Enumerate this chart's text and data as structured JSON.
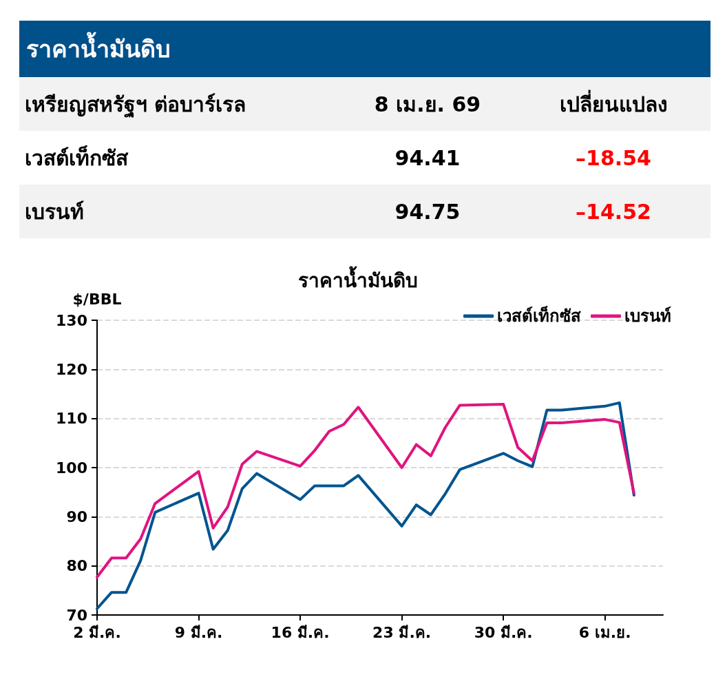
{
  "chart_data": [
    {
      "type": "other",
      "title": "ราคาน้ำมันดิบ",
      "subtitle": "เหรียญสหรัฐฯ ต่อบาร์เรล",
      "categories": [
        "เวสต์เท็กซัส",
        "เบรนท์"
      ],
      "data_labels": true,
      "series": [
        {
          "name": "8 เม.ย. 69",
          "values": [
            94.41,
            94.75
          ]
        },
        {
          "name": "เปลี่ยนแปลง",
          "values": [
            -18.54,
            -14.52
          ],
          "value_labels": [
            "–18.54",
            "–14.52"
          ]
        }
      ]
    },
    {
      "type": "line",
      "title": "ราคาน้ำมันดิบ",
      "ylabel": "$/BBL",
      "legend": "top right",
      "grid": "y",
      "line_style": "solid",
      "xlim": [
        "--03-02",
        "--04-10"
      ],
      "ylim": [
        70,
        130
      ],
      "yticks": [
        70,
        80,
        90,
        100,
        110,
        120,
        130
      ],
      "xticks": [
        {
          "value": "--03-02",
          "label": "2 มี.ค."
        },
        {
          "value": "--03-09",
          "label": "9 มี.ค."
        },
        {
          "value": "--03-16",
          "label": "16 มี.ค."
        },
        {
          "value": "--03-23",
          "label": "23 มี.ค."
        },
        {
          "value": "--03-30",
          "label": "30 มี.ค."
        },
        {
          "value": "--04-06",
          "label": "6 เม.ย."
        }
      ],
      "x": [
        "--03-02",
        "--03-03",
        "--03-04",
        "--03-05",
        "--03-06",
        "--03-09",
        "--03-10",
        "--03-11",
        "--03-12",
        "--03-13",
        "--03-16",
        "--03-17",
        "--03-18",
        "--03-19",
        "--03-20",
        "--03-23",
        "--03-24",
        "--03-25",
        "--03-26",
        "--03-27",
        "--03-30",
        "--03-31",
        "--04-01",
        "--04-02",
        "--04-03",
        "--04-06",
        "--04-07",
        "--04-08"
      ],
      "series": [
        {
          "name": "เวสต์เท็กซัส",
          "color": "#00548f",
          "values": [
            71.3,
            74.6,
            74.6,
            81.1,
            90.9,
            94.8,
            83.4,
            87.2,
            95.7,
            98.8,
            93.5,
            96.3,
            96.3,
            96.3,
            98.4,
            88.1,
            92.4,
            90.4,
            94.7,
            99.6,
            102.9,
            101.4,
            100.2,
            111.7,
            111.7,
            112.5,
            113.2,
            94.4
          ]
        },
        {
          "name": "เบรนท์",
          "color": "#e0147f",
          "values": [
            77.7,
            81.6,
            81.6,
            85.5,
            92.7,
            99.2,
            87.7,
            92.0,
            100.7,
            103.3,
            100.3,
            103.5,
            107.4,
            108.8,
            112.3,
            100.0,
            104.7,
            102.4,
            108.2,
            112.7,
            112.9,
            104.1,
            101.4,
            109.1,
            109.1,
            109.8,
            109.2,
            94.8
          ]
        }
      ]
    }
  ]
}
